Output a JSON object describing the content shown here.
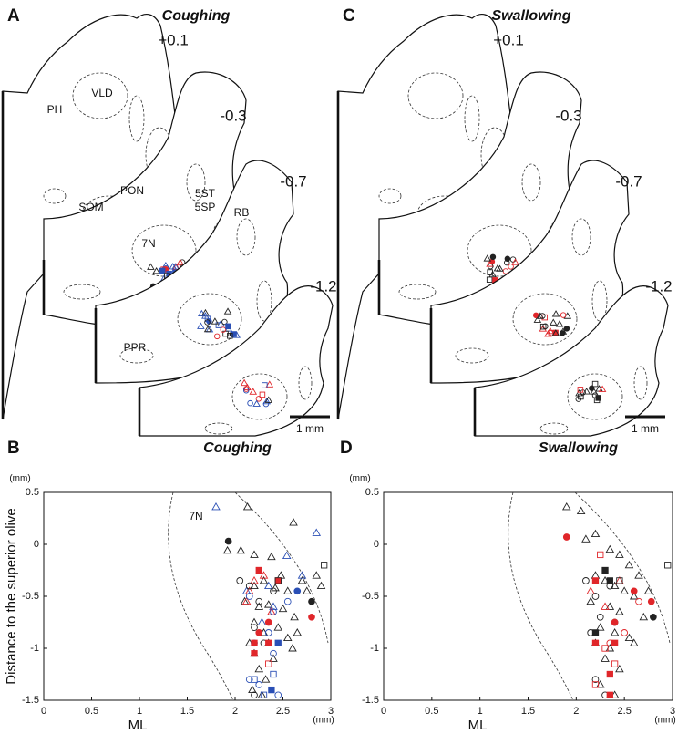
{
  "panels": [
    {
      "letter": "A",
      "title": "Coughing",
      "levels": [
        "+0.1",
        "-0.3",
        "-0.7",
        "-1.2"
      ],
      "regions": [
        "PH",
        "VLD",
        "PON",
        "SOM",
        "5ST",
        "5SP",
        "RB",
        "7N",
        "PPR"
      ],
      "scale_bar": "1 mm"
    },
    {
      "letter": "C",
      "title": "Swallowing",
      "levels": [
        "+0.1",
        "-0.3",
        "-0.7",
        "-1.2"
      ],
      "scale_bar": "1 mm"
    }
  ],
  "chart_data": [
    {
      "type": "scatter",
      "panel": "B",
      "title": "Coughing",
      "annotation": "7N",
      "xlabel": "ML",
      "xunit": "(mm)",
      "ylabel": "Distance to the superior olive",
      "yunit": "(mm)",
      "xlim": [
        0,
        3
      ],
      "ylim": [
        -1.5,
        0.5
      ],
      "xticks": [
        0,
        0.5,
        1,
        1.5,
        2,
        2.5,
        3
      ],
      "yticks": [
        -1.5,
        -1,
        -0.5,
        0,
        0.5
      ],
      "series": [
        {
          "color": "#222222",
          "marker": "triangle",
          "filled": false,
          "x": [
            2.13,
            2.61,
            1.92,
            2.06,
            2.2,
            2.38,
            2.48,
            2.3,
            2.2,
            2.42,
            2.55,
            2.7,
            2.85,
            2.1,
            2.25,
            2.35,
            2.5,
            2.62,
            2.9,
            2.2,
            2.3,
            2.45,
            2.65,
            2.75,
            2.15,
            2.35,
            2.55,
            2.2,
            2.4,
            2.6,
            2.25,
            2.32,
            2.18,
            2.28
          ],
          "y": [
            0.36,
            0.21,
            -0.06,
            -0.06,
            -0.1,
            -0.12,
            -0.3,
            -0.35,
            -0.4,
            -0.42,
            -0.45,
            -0.35,
            -0.3,
            -0.55,
            -0.6,
            -0.58,
            -0.62,
            -0.7,
            -0.4,
            -0.75,
            -0.85,
            -0.8,
            -0.85,
            -0.45,
            -0.95,
            -0.95,
            -0.9,
            -1.05,
            -1.1,
            -1.0,
            -1.2,
            -1.3,
            -1.4,
            -1.45
          ]
        },
        {
          "color": "#2a4fb5",
          "marker": "triangle",
          "filled": false,
          "x": [
            1.8,
            2.85,
            2.54,
            2.7,
            2.35,
            2.12,
            2.4,
            2.28
          ],
          "y": [
            0.36,
            0.11,
            -0.11,
            -0.3,
            -0.4,
            -0.45,
            -0.6,
            -0.75
          ]
        },
        {
          "color": "#e0262a",
          "marker": "triangle",
          "filled": false,
          "x": [
            2.15,
            2.3,
            2.12,
            2.38,
            2.2
          ],
          "y": [
            -0.45,
            -0.3,
            -0.55,
            -0.65,
            -0.35
          ]
        },
        {
          "color": "#222222",
          "marker": "circle",
          "filled": false,
          "x": [
            2.05,
            2.15,
            2.25,
            2.4,
            2.2,
            2.3,
            2.2
          ],
          "y": [
            -0.35,
            -0.4,
            -0.55,
            -0.45,
            -0.8,
            -0.95,
            -1.45
          ]
        },
        {
          "color": "#2a4fb5",
          "marker": "circle",
          "filled": false,
          "x": [
            2.15,
            2.4,
            2.55,
            2.35,
            2.2,
            2.4,
            2.15,
            2.25,
            2.45
          ],
          "y": [
            -0.5,
            -0.65,
            -0.55,
            -0.85,
            -0.95,
            -1.05,
            -1.3,
            -1.35,
            -1.45
          ]
        },
        {
          "color": "#222222",
          "marker": "circle",
          "filled": true,
          "x": [
            1.93,
            2.8
          ],
          "y": [
            0.03,
            -0.55
          ]
        },
        {
          "color": "#e0262a",
          "marker": "circle",
          "filled": true,
          "x": [
            2.8,
            2.35,
            2.25
          ],
          "y": [
            -0.7,
            -0.75,
            -0.85
          ]
        },
        {
          "color": "#2a4fb5",
          "marker": "circle",
          "filled": true,
          "x": [
            2.65
          ],
          "y": [
            -0.45
          ]
        },
        {
          "color": "#e0262a",
          "marker": "square",
          "filled": true,
          "x": [
            2.25,
            2.45,
            2.35,
            2.2,
            2.2
          ],
          "y": [
            -0.25,
            -0.35,
            -0.95,
            -0.95,
            -1.05
          ]
        },
        {
          "color": "#2a4fb5",
          "marker": "square",
          "filled": true,
          "x": [
            2.45,
            2.38
          ],
          "y": [
            -0.95,
            -1.4
          ]
        },
        {
          "color": "#222222",
          "marker": "square",
          "filled": false,
          "x": [
            2.93,
            2.45
          ],
          "y": [
            -0.2,
            -0.35
          ]
        },
        {
          "color": "#2a4fb5",
          "marker": "square",
          "filled": false,
          "x": [
            2.2,
            2.3,
            2.4
          ],
          "y": [
            -1.3,
            -1.45,
            -1.25
          ]
        },
        {
          "color": "#e0262a",
          "marker": "square",
          "filled": false,
          "x": [
            2.35
          ],
          "y": [
            -1.15
          ]
        }
      ]
    },
    {
      "type": "scatter",
      "panel": "D",
      "title": "Swallowing",
      "xlabel": "ML",
      "xunit": "(mm)",
      "yunit": "(mm)",
      "xlim": [
        0,
        3
      ],
      "ylim": [
        -1.5,
        0.5
      ],
      "xticks": [
        0,
        0.5,
        1,
        1.5,
        2,
        2.5,
        3
      ],
      "yticks": [
        -1.5,
        -1,
        -0.5,
        0,
        0.5
      ],
      "series": [
        {
          "color": "#222222",
          "marker": "triangle",
          "filled": false,
          "x": [
            1.9,
            2.05,
            2.2,
            2.1,
            2.35,
            2.45,
            2.55,
            2.65,
            2.2,
            2.3,
            2.4,
            2.5,
            2.6,
            2.75,
            2.15,
            2.35,
            2.45,
            2.7,
            2.25,
            2.4,
            2.55,
            2.2,
            2.35,
            2.6,
            2.3,
            2.45,
            2.25,
            2.4
          ],
          "y": [
            0.36,
            0.32,
            0.1,
            0.05,
            -0.05,
            -0.1,
            -0.2,
            -0.3,
            -0.3,
            -0.35,
            -0.4,
            -0.45,
            -0.5,
            -0.45,
            -0.55,
            -0.6,
            -0.65,
            -0.7,
            -0.8,
            -0.85,
            -0.9,
            -0.95,
            -1.0,
            -0.95,
            -1.1,
            -1.2,
            -1.35,
            -1.45
          ]
        },
        {
          "color": "#e0262a",
          "marker": "triangle",
          "filled": false,
          "x": [
            2.15,
            2.3,
            2.45
          ],
          "y": [
            -0.45,
            -0.6,
            -0.35
          ]
        },
        {
          "color": "#222222",
          "marker": "circle",
          "filled": false,
          "x": [
            2.1,
            2.2,
            2.35,
            2.25,
            2.15,
            2.2,
            2.3
          ],
          "y": [
            -0.35,
            -0.5,
            -0.4,
            -0.7,
            -0.85,
            -1.3,
            -1.45
          ]
        },
        {
          "color": "#e0262a",
          "marker": "circle",
          "filled": false,
          "x": [
            2.65,
            2.35,
            2.5
          ],
          "y": [
            -0.55,
            -0.95,
            -0.85
          ]
        },
        {
          "color": "#222222",
          "marker": "circle",
          "filled": true,
          "x": [
            2.4,
            2.8
          ],
          "y": [
            -0.75,
            -0.7
          ]
        },
        {
          "color": "#e0262a",
          "marker": "circle",
          "filled": true,
          "x": [
            1.9,
            2.6,
            2.78,
            2.4
          ],
          "y": [
            0.07,
            -0.45,
            -0.55,
            -0.75
          ]
        },
        {
          "color": "#222222",
          "marker": "square",
          "filled": true,
          "x": [
            2.3,
            2.35,
            2.2
          ],
          "y": [
            -0.25,
            -0.35,
            -0.85
          ]
        },
        {
          "color": "#e0262a",
          "marker": "square",
          "filled": true,
          "x": [
            2.2,
            2.2,
            2.4,
            2.35,
            2.35
          ],
          "y": [
            -0.35,
            -0.95,
            -0.95,
            -1.25,
            -1.45
          ]
        },
        {
          "color": "#222222",
          "marker": "square",
          "filled": false,
          "x": [
            2.95,
            2.45
          ],
          "y": [
            -0.2,
            -0.35
          ]
        },
        {
          "color": "#e0262a",
          "marker": "square",
          "filled": false,
          "x": [
            2.25,
            2.2,
            2.4,
            2.3
          ],
          "y": [
            -0.1,
            -1.35,
            -1.15,
            -1.0
          ]
        }
      ]
    }
  ]
}
